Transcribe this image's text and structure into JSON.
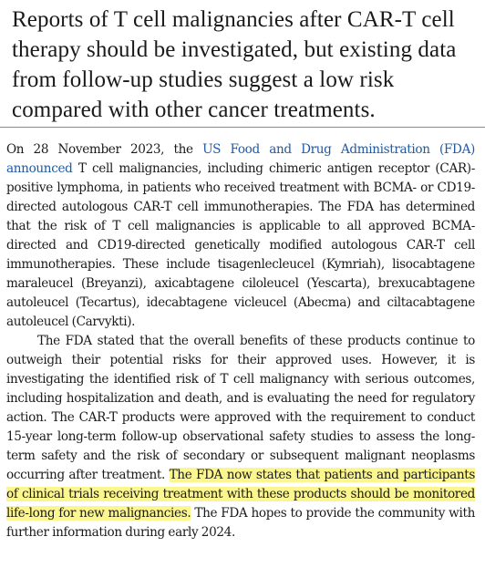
{
  "standfirst": "Reports of T cell malignancies after CAR-T cell therapy should be investigated, but existing data from follow-up studies suggest a low risk compared with other cancer treatments.",
  "paragraph1": {
    "lead": "On 28 November 2023, the ",
    "link": "US Food and Drug Administration (FDA) announced",
    "rest": " T cell malignancies, including chimeric antigen receptor (CAR)-positive lymphoma, in patients who received treatment with BCMA- or CD19-directed autologous CAR-T cell immunotherapies. The FDA has determined that the risk of T cell malignancies is applicable to all approved BCMA-directed and CD19-directed genetically modified autologous CAR-T cell immunotherapies. These include tisagenlecleucel (Kymriah), lisocabtagene maraleucel (Breyanzi), axicabtagene ciloleucel (Yescarta), brexucabtagene autoleucel (Tecartus), idecabtagene vicleucel (Abecma) and ciltacabtagene autoleucel (Carvykti)."
  },
  "paragraph2": {
    "lead": "The FDA stated that the overall benefits of these products continue to outweigh their potential risks for their approved uses. However, it is investigating the identified risk of T cell malignancy with serious outcomes, including hospitalization and death, and is evaluating the need for regulatory action. The CAR-T products were approved with the requirement to conduct 15-year long-term follow-up observational safety studies to assess the long-term safety and the risk of secondary or subsequent malignant neoplasms occurring after treatment. ",
    "highlight": "The FDA now states that patients and participants of clinical trials receiving treatment with these products should be monitored life-long for new malignancies.",
    "tail": " The FDA hopes to provide the community with further information during early 2024."
  },
  "colors": {
    "link": "#1f5aa6",
    "highlight": "#fcf68f",
    "text": "#1a1a1a",
    "divider": "#8a8a8a"
  }
}
